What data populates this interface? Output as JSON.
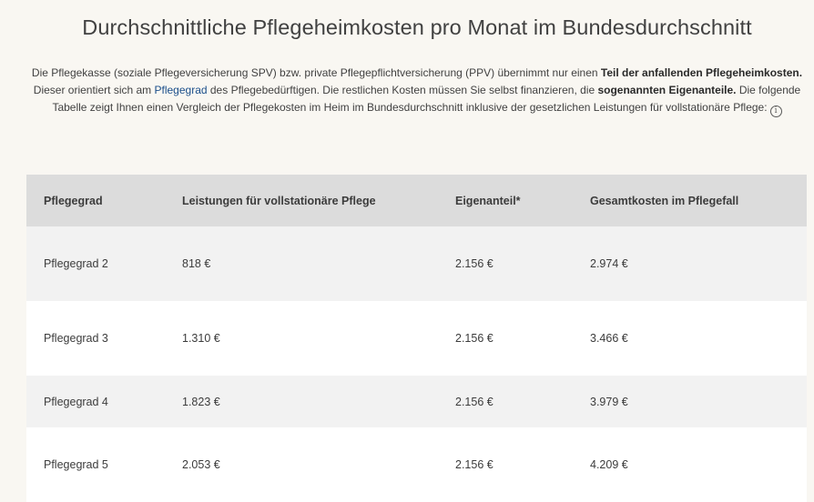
{
  "title": "Durchschnittliche Pflegeheimkosten pro Monat im Bundesdurchschnitt",
  "intro": {
    "part1": "Die Pflegekasse (soziale Pflegeversicherung SPV) bzw. private Pflegepflichtversicherung (PPV) übernimmt nur einen ",
    "bold1": "Teil der anfallenden Pflegeheimkosten.",
    "part2": " Dieser orientiert sich am ",
    "link": "Pflegegrad",
    "part3": " des Pflegebedürftigen. Die restlichen Kosten müssen Sie selbst finanzieren, die ",
    "bold2": "sogenannten Eigenanteile.",
    "part4": " Die folgende Tabelle zeigt Ihnen einen Vergleich der Pflegekosten im Heim im Bundesdurchschnitt inklusive der gesetzlichen Leistungen für vollstationäre Pflege:",
    "info_icon": "info-circle-icon"
  },
  "table": {
    "headers": [
      "Pflegegrad",
      "Leistungen für vollstationäre Pflege",
      "Eigenanteil*",
      "Gesamtkosten im Pflegefall"
    ],
    "rows": [
      [
        "Pflegegrad 2",
        "818 €",
        "2.156 €",
        "2.974 €"
      ],
      [
        "Pflegegrad 3",
        "1.310 €",
        "2.156 €",
        "3.466 €"
      ],
      [
        "Pflegegrad 4",
        "1.823 €",
        "2.156 €",
        "3.979 €"
      ],
      [
        "Pflegegrad 5",
        "2.053 €",
        "2.156 €",
        "4.209 €"
      ]
    ]
  },
  "colors": {
    "background": "#f9f7f2",
    "header_row": "#dcdcdc",
    "striped_row": "#f2f2f2",
    "link": "#1a4e8a"
  }
}
